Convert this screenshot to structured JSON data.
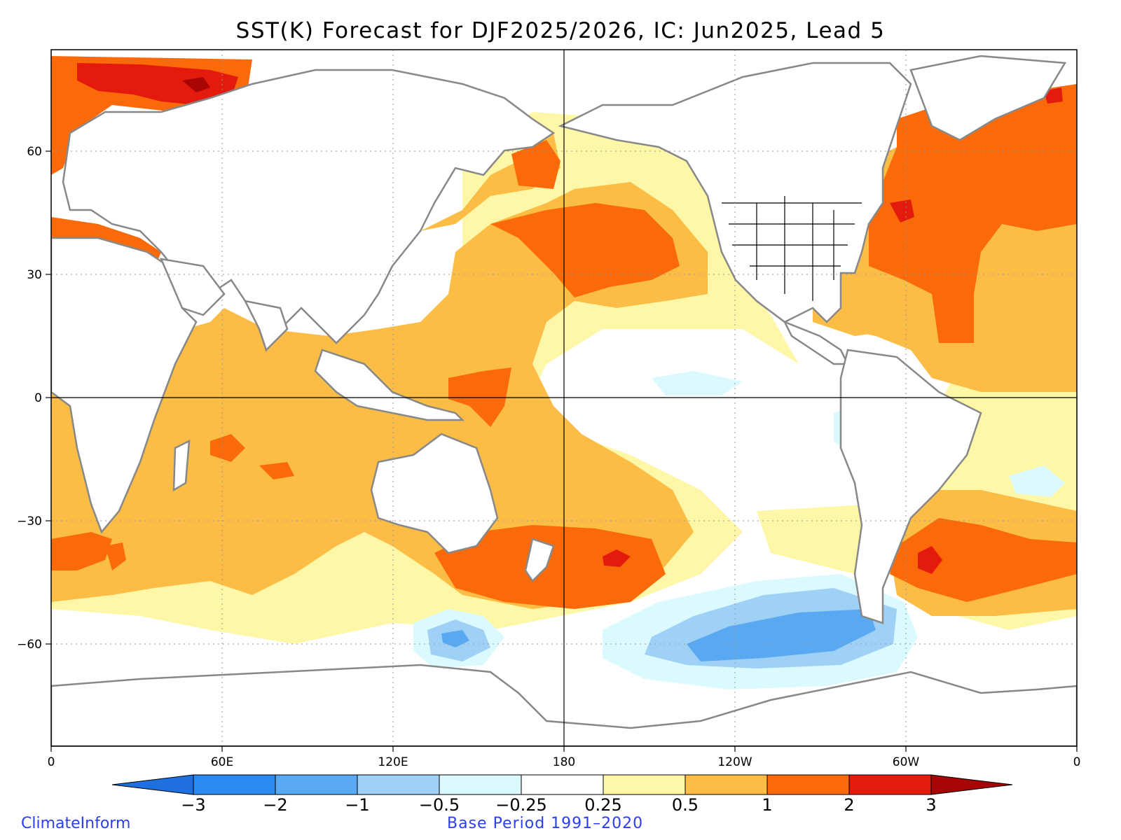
{
  "title": "SST(K) Forecast for DJF2025/2026, IC: Jun2025, Lead 5",
  "x_ticks": [
    "0",
    "60E",
    "120E",
    "180",
    "120W",
    "60W",
    "0"
  ],
  "y_ticks": [
    "60",
    "30",
    "0",
    "−30",
    "−60"
  ],
  "colorbar": {
    "labels": [
      "−3",
      "−2",
      "−1",
      "−0.5",
      "−0.25",
      "0.25",
      "0.5",
      "1",
      "2",
      "3"
    ],
    "colors": [
      "#1e6fe0",
      "#2a8af0",
      "#58a8f2",
      "#9fd1f7",
      "#dafaff",
      "#ffffff",
      "#fff7a8",
      "#fbbd45",
      "#fb6a0a",
      "#e31a0c",
      "#a80505"
    ]
  },
  "footer": {
    "source": "ClimateInform",
    "base_period": "Base Period 1991–2020"
  },
  "colors": {
    "land_outline": "#888888",
    "state_lines": "#000000",
    "footer_text": "#2b3ff0"
  }
}
